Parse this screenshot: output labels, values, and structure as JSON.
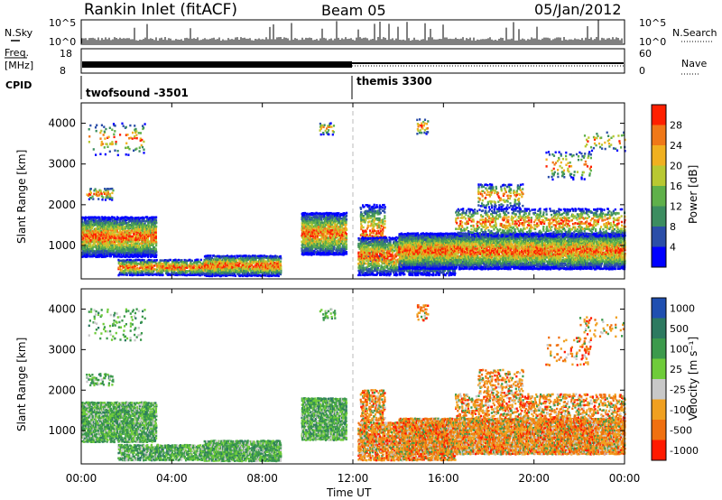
{
  "header": {
    "title": "Rankin Inlet (fitACF)",
    "beam": "Beam 05",
    "date": "05/Jan/2012"
  },
  "top_panels": {
    "nsky_label": "N.Sky",
    "nsearch_label": "N.Search",
    "count_ticks_left": [
      "10^5",
      "10^0"
    ],
    "count_ticks_right": [
      "10^5",
      "10^0"
    ],
    "freq_label_line1": "Freq.",
    "freq_label_line2": "[MHz]",
    "freq_ticks": [
      "18",
      "8"
    ],
    "nave_label": "Nave",
    "nave_ticks": [
      "60",
      "0"
    ],
    "cpid_label": "CPID",
    "cpid_left": "twofsound -3501",
    "cpid_right": "themis 3300"
  },
  "chart_data": [
    {
      "type": "heatmap",
      "title": "",
      "xlabel": "",
      "ylabel": "Slant Range [km]",
      "ylim": [
        180,
        4500
      ],
      "yticks": [
        "1000",
        "2000",
        "3000",
        "4000"
      ],
      "colorbar_label": "Power [dB]",
      "colorbar_ticks": [
        "28",
        "24",
        "20",
        "16",
        "12",
        "8",
        "4"
      ],
      "colors": [
        "#0000ff",
        "#2b4ea8",
        "#3c8d60",
        "#5fb04a",
        "#b8c832",
        "#f0b020",
        "#f07818",
        "#ff2000"
      ]
    },
    {
      "type": "heatmap",
      "title": "",
      "xlabel": "Time UT",
      "ylabel": "Slant Range [km]",
      "ylim": [
        180,
        4500
      ],
      "yticks": [
        "1000",
        "2000",
        "3000",
        "4000"
      ],
      "xticks": [
        "00:00",
        "04:00",
        "08:00",
        "12:00",
        "16:00",
        "20:00",
        "00:00"
      ],
      "colorbar_label": "Velocity [m s⁻¹]",
      "colorbar_ticks": [
        "1000",
        "500",
        "100",
        "25",
        "-25",
        "-100",
        "-500",
        "-1000"
      ],
      "colors": [
        "#1f4fb0",
        "#2d7a60",
        "#3c9a4c",
        "#6fcc3a",
        "#c8c8c8",
        "#f0a020",
        "#f07010",
        "#ff1a00"
      ]
    }
  ]
}
